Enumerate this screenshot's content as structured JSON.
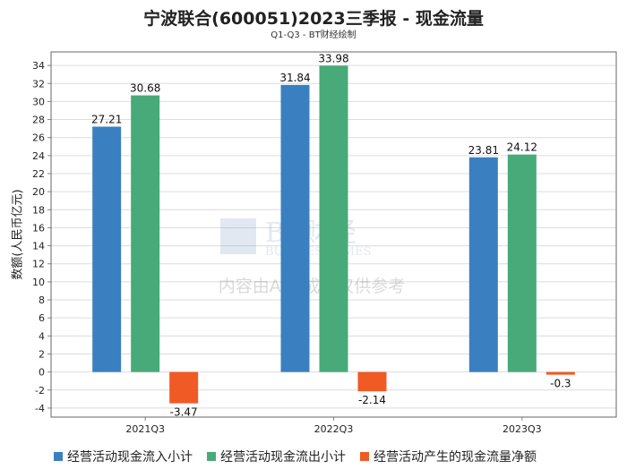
{
  "chart_data": {
    "type": "bar",
    "title": "宁波联合(600051)2023三季报 - 现金流量",
    "subtitle": "Q1-Q3 - BT财经绘制",
    "ylabel": "数额(人民币亿元)",
    "xlabel": "",
    "ylim": [
      -5,
      35.5
    ],
    "yticks": [
      -4,
      -2,
      0,
      2,
      4,
      6,
      8,
      10,
      12,
      14,
      16,
      18,
      20,
      22,
      24,
      26,
      28,
      30,
      32,
      34
    ],
    "categories": [
      "2021Q3",
      "2022Q3",
      "2023Q3"
    ],
    "series": [
      {
        "name": "经营活动现金流入小计",
        "color": "#3a80c0",
        "values": [
          27.21,
          31.84,
          23.81
        ]
      },
      {
        "name": "经营活动现金流出小计",
        "color": "#47aa78",
        "values": [
          30.68,
          33.98,
          24.12
        ]
      },
      {
        "name": "经营活动产生的现金流量净额",
        "color": "#f05a24",
        "values": [
          -3.47,
          -2.14,
          -0.3
        ]
      }
    ],
    "watermark": {
      "logo": "BT财经",
      "logo_sub": "BUSINESSTIMES",
      "text": "内容由AI生成，仅供参考"
    },
    "grid": true,
    "legend_position": "bottom"
  }
}
